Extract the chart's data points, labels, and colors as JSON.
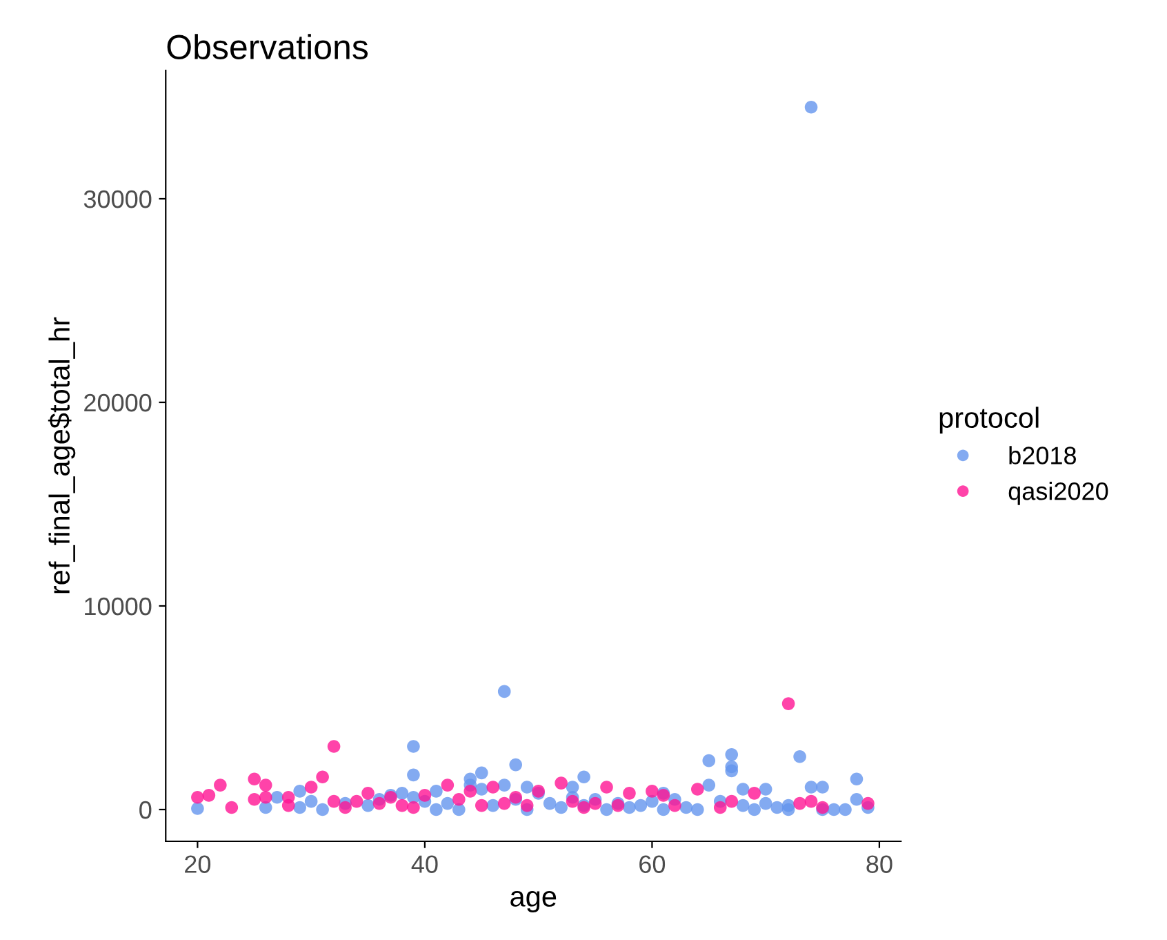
{
  "chart_data": {
    "type": "scatter",
    "title": "Observations",
    "xlabel": "age",
    "ylabel": "ref_final_age$total_hr",
    "legend_title": "protocol",
    "legend": "right",
    "grid": false,
    "marker": "circle",
    "xlim": [
      17.2,
      81.9
    ],
    "xticks": [
      20,
      40,
      60,
      80
    ],
    "ylim": [
      -1560,
      36300
    ],
    "yticks": [
      0,
      10000,
      20000,
      30000
    ],
    "series": [
      {
        "name": "b2018",
        "color": "#6495ed",
        "x": [
          20,
          26,
          27,
          29,
          29,
          31,
          30,
          33,
          35,
          36,
          37,
          38,
          39,
          39,
          39,
          40,
          41,
          41,
          42,
          43,
          44,
          44,
          45,
          45,
          46,
          47,
          47,
          48,
          48,
          49,
          49,
          50,
          51,
          52,
          53,
          53,
          54,
          54,
          55,
          56,
          57,
          58,
          59,
          60,
          61,
          61,
          62,
          63,
          64,
          65,
          65,
          66,
          67,
          67,
          67,
          68,
          69,
          70,
          71,
          72,
          73,
          74,
          74,
          75,
          76,
          77,
          78,
          78,
          79,
          68,
          70,
          72,
          75
        ],
        "values": [
          50,
          100,
          600,
          900,
          100,
          0,
          400,
          300,
          200,
          500,
          700,
          800,
          3100,
          1700,
          600,
          400,
          0,
          900,
          300,
          0,
          1500,
          1200,
          1800,
          1000,
          200,
          5800,
          1200,
          2200,
          500,
          1100,
          0,
          800,
          300,
          100,
          1100,
          600,
          1600,
          200,
          500,
          0,
          300,
          100,
          200,
          400,
          0,
          800,
          500,
          100,
          0,
          2400,
          1200,
          400,
          2700,
          2100,
          1900,
          1000,
          0,
          1000,
          100,
          0,
          2600,
          1100,
          34500,
          1100,
          0,
          0,
          1500,
          500,
          100,
          200,
          300,
          200,
          0
        ]
      },
      {
        "name": "qasi2020",
        "color": "#ff1493",
        "x": [
          20,
          22,
          21,
          23,
          25,
          25,
          26,
          26,
          28,
          28,
          30,
          31,
          32,
          32,
          33,
          34,
          35,
          36,
          37,
          38,
          39,
          40,
          42,
          43,
          44,
          46,
          47,
          49,
          50,
          52,
          53,
          54,
          55,
          56,
          57,
          58,
          60,
          61,
          62,
          64,
          66,
          67,
          69,
          72,
          73,
          74,
          75,
          79,
          45,
          48
        ],
        "values": [
          600,
          1200,
          700,
          100,
          1500,
          500,
          1200,
          600,
          600,
          200,
          1100,
          1600,
          3100,
          400,
          100,
          400,
          800,
          300,
          600,
          200,
          100,
          700,
          1200,
          500,
          900,
          1100,
          300,
          200,
          900,
          1300,
          400,
          100,
          300,
          1100,
          200,
          800,
          900,
          700,
          200,
          1000,
          100,
          400,
          800,
          5200,
          300,
          400,
          100,
          300,
          200,
          600
        ]
      }
    ]
  }
}
